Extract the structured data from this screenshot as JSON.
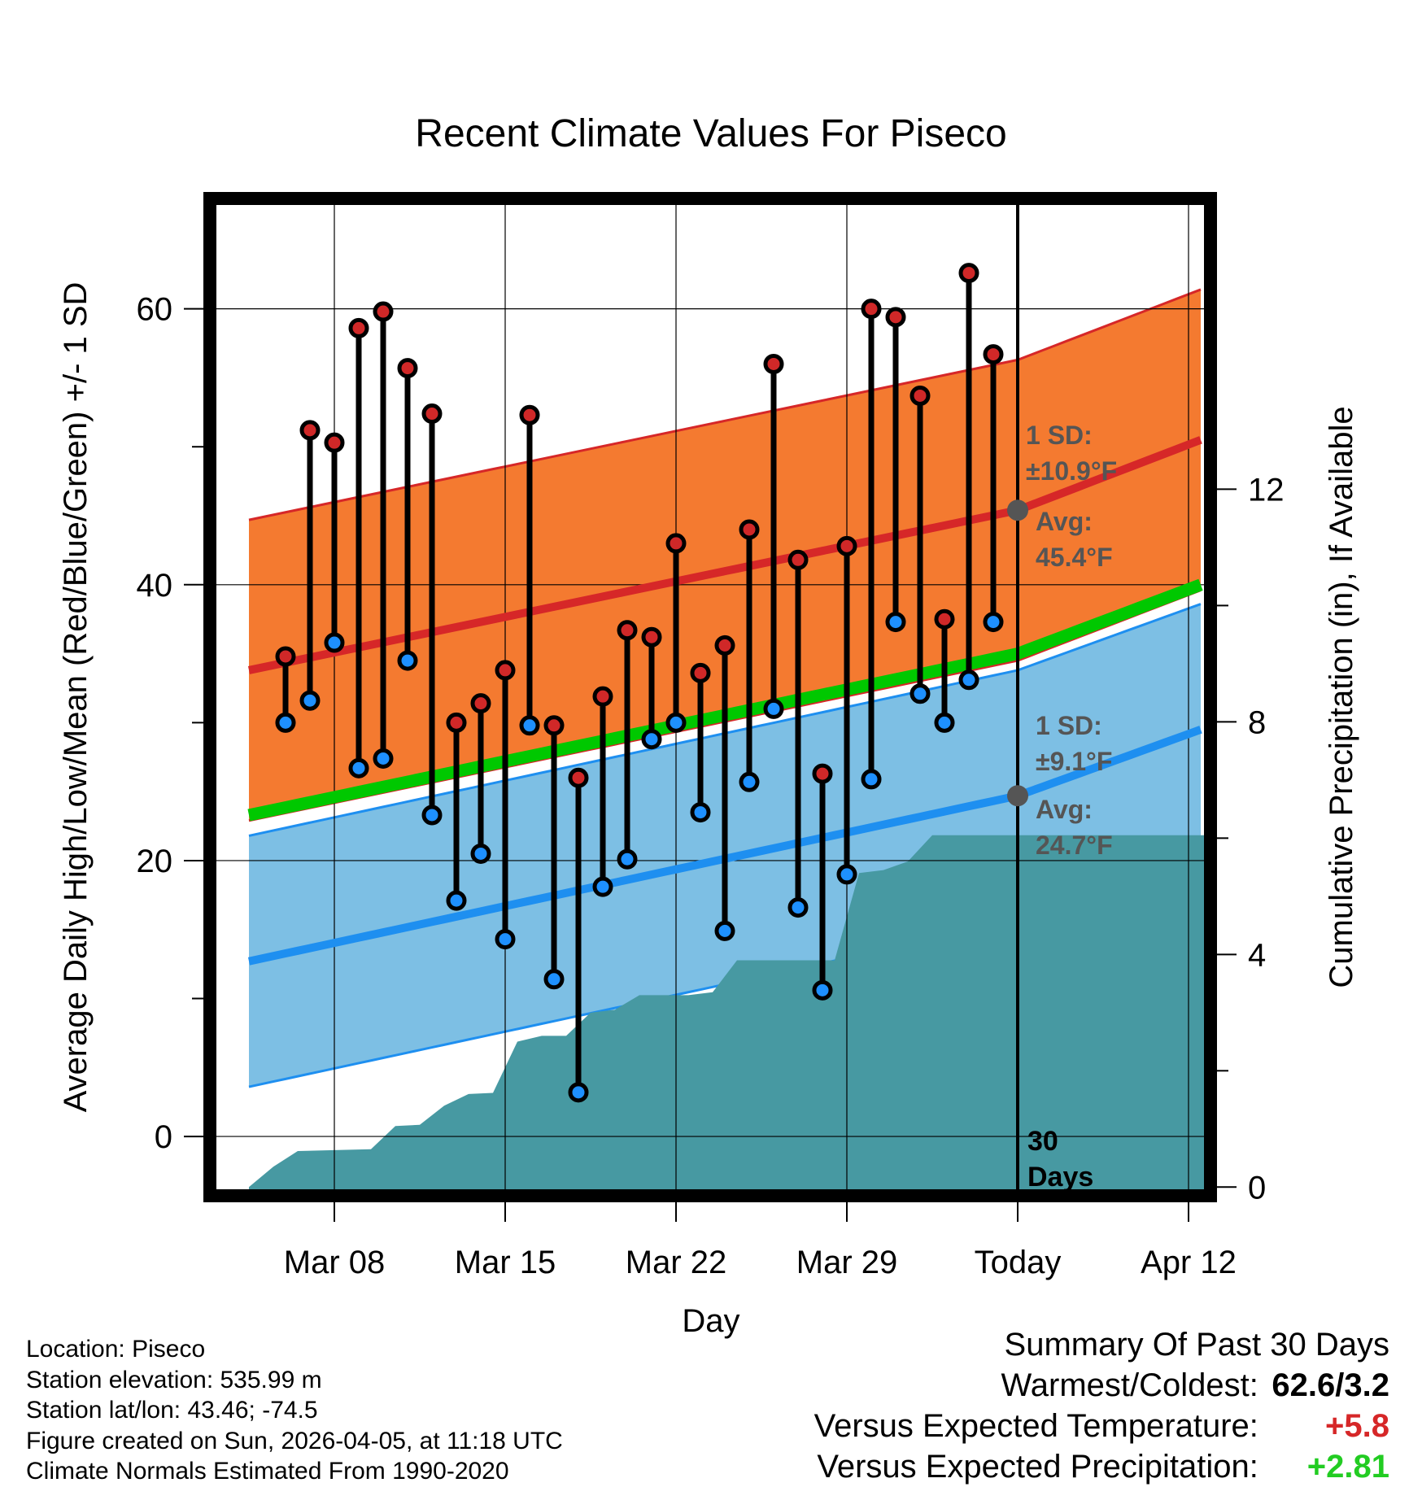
{
  "chart_data": {
    "type": "climate-range",
    "title": "Recent Climate Values For Piseco",
    "xlabel": "Day",
    "ylabel_left": "Average Daily High/Low/Mean (Red/Blue/Green) +/- 1 SD",
    "ylabel_right": "Cumulative Precipitation (in), If Available",
    "x_tick_labels": [
      "Mar 08",
      "Mar 15",
      "Mar 22",
      "Mar 29",
      "Today",
      "Apr 12"
    ],
    "x_tick_days": [
      3,
      10,
      17,
      24,
      31,
      38
    ],
    "xlim": [
      -2.1,
      38.9
    ],
    "ylim_left": [
      -4.3,
      68.0
    ],
    "yticks_left": [
      0,
      20,
      40,
      60
    ],
    "ylim_right": [
      -0.15,
      17.0
    ],
    "yticks_right": [
      0,
      4,
      8,
      12
    ],
    "days_label": "30\nDays",
    "high_temps": [
      34.8,
      51.2,
      50.3,
      58.6,
      59.8,
      55.7,
      52.4,
      30.0,
      31.4,
      33.8,
      52.3,
      29.8,
      26.0,
      31.9,
      36.7,
      36.2,
      43.0,
      33.6,
      35.6,
      44.0,
      56.0,
      41.8,
      26.3,
      42.8,
      60.0,
      59.4,
      53.7,
      37.5,
      62.6,
      56.7
    ],
    "low_temps": [
      30.0,
      31.6,
      35.8,
      26.7,
      27.4,
      34.5,
      23.3,
      17.1,
      20.5,
      14.3,
      29.8,
      11.4,
      3.2,
      18.1,
      20.1,
      28.8,
      30.0,
      23.5,
      14.9,
      25.7,
      31.0,
      16.6,
      10.6,
      19.0,
      25.9,
      37.3,
      32.1,
      30.0,
      33.1,
      37.3
    ],
    "normal_high": {
      "start": 33.8,
      "today": 45.4,
      "end": 50.5,
      "sd": 10.9,
      "sd_label": "1 SD:",
      "sd_text": "±10.9°F",
      "avg_label": "Avg:",
      "avg_text": "45.4°F"
    },
    "normal_low": {
      "start": 12.7,
      "today": 24.7,
      "end": 29.5,
      "sd": 9.1,
      "sd_label": "1 SD:",
      "sd_text": "±9.1°F",
      "avg_label": "Avg:",
      "avg_text": "24.7°F"
    },
    "normal_mean": {
      "start": 23.3,
      "today": 35.0,
      "end": 40.0
    },
    "cumulative_precip": [
      0.0,
      0.35,
      0.62,
      0.63,
      0.64,
      0.65,
      1.05,
      1.07,
      1.4,
      1.6,
      1.62,
      2.5,
      2.6,
      2.6,
      3.0,
      3.05,
      3.3,
      3.3,
      3.3,
      3.35,
      3.9,
      3.9,
      3.9,
      3.9,
      3.9,
      5.4,
      5.45,
      5.6,
      6.05,
      6.05,
      6.05,
      6.05,
      6.05,
      6.05,
      6.05,
      6.05,
      6.05,
      6.05,
      6.05,
      6.05,
      6.05,
      6.05
    ],
    "colors": {
      "high_band": "#f47a30",
      "high_line": "#d62728",
      "low_band": "#7dbfe4",
      "low_line": "#1e8ff0",
      "mean_line": "#00c800",
      "overlap_band": "#8b1010",
      "precip": "#4799a2",
      "high_marker": "#d02828",
      "low_marker": "#1e90ff",
      "annotation": "#555555"
    }
  },
  "footer": {
    "location": "Location: Piseco",
    "elevation": "Station elevation: 535.99 m",
    "latlon": "Station lat/lon: 43.46; -74.5",
    "created": "Figure created on Sun, 2026-04-05, at 11:18 UTC",
    "normals": "Climate Normals Estimated From 1990-2020"
  },
  "summary": {
    "title": "Summary Of Past 30 Days",
    "warm_cold_label": "Warmest/Coldest:",
    "warm_cold_value": "62.6/3.2",
    "temp_label": "Versus Expected Temperature:",
    "temp_value": "+5.8",
    "temp_color": "#d62728",
    "precip_label": "Versus Expected Precipitation:",
    "precip_value": "+2.81",
    "precip_color": "#22cc22"
  }
}
